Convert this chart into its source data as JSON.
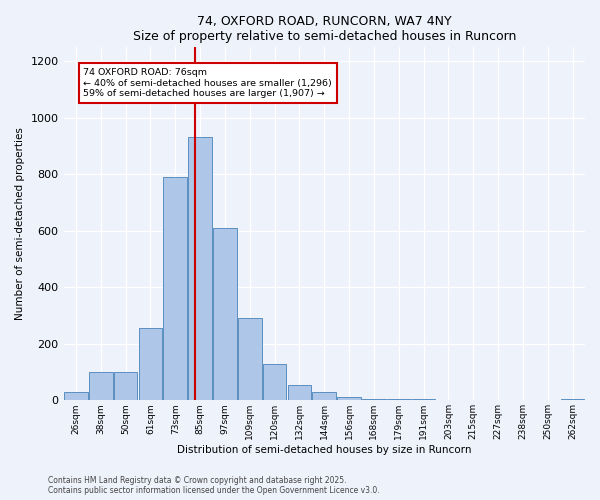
{
  "title1": "74, OXFORD ROAD, RUNCORN, WA7 4NY",
  "title2": "Size of property relative to semi-detached houses in Runcorn",
  "xlabel": "Distribution of semi-detached houses by size in Runcorn",
  "ylabel": "Number of semi-detached properties",
  "categories": [
    "26sqm",
    "38sqm",
    "50sqm",
    "61sqm",
    "73sqm",
    "85sqm",
    "97sqm",
    "109sqm",
    "120sqm",
    "132sqm",
    "144sqm",
    "156sqm",
    "168sqm",
    "179sqm",
    "191sqm",
    "203sqm",
    "215sqm",
    "227sqm",
    "238sqm",
    "250sqm",
    "262sqm"
  ],
  "values": [
    30,
    100,
    100,
    255,
    790,
    930,
    610,
    290,
    130,
    55,
    30,
    10,
    5,
    5,
    3,
    2,
    2,
    1,
    1,
    1,
    5
  ],
  "bar_color": "#aec6e8",
  "bar_edge_color": "#5a8fc0",
  "vline_x": 4.78,
  "vline_color": "#cc0000",
  "annotation_title": "74 OXFORD ROAD: 76sqm",
  "annotation_line1": "← 40% of semi-detached houses are smaller (1,296)",
  "annotation_line2": "59% of semi-detached houses are larger (1,907) →",
  "annotation_box_color": "#cc0000",
  "ylim": [
    0,
    1250
  ],
  "yticks": [
    0,
    200,
    400,
    600,
    800,
    1000,
    1200
  ],
  "footer1": "Contains HM Land Registry data © Crown copyright and database right 2025.",
  "footer2": "Contains public sector information licensed under the Open Government Licence v3.0.",
  "bg_color": "#eef2fb"
}
